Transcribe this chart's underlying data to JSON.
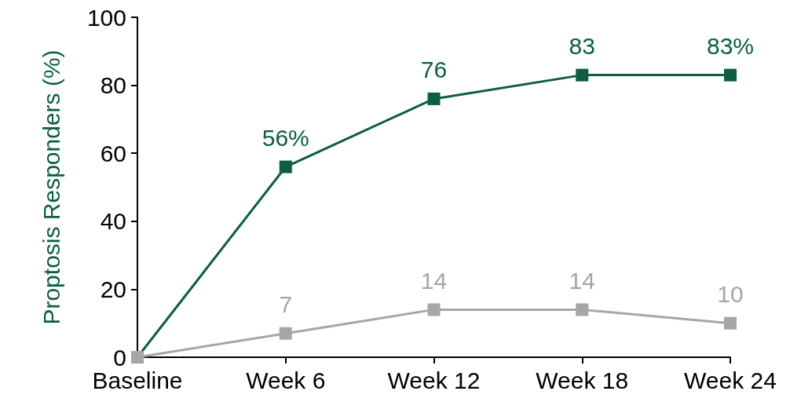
{
  "chart_data": {
    "type": "line",
    "ylabel": "Proptosis Responders (%)",
    "categories": [
      "Baseline",
      "Week 6",
      "Week 12",
      "Week 18",
      "Week 24"
    ],
    "series": [
      {
        "color": "#0b5e3f",
        "values": [
          0,
          56,
          76,
          83,
          83
        ],
        "value_labels": [
          null,
          "56%",
          "76",
          "83",
          "83%"
        ]
      },
      {
        "color": "#a6a6a6",
        "values": [
          0,
          7,
          14,
          14,
          10
        ],
        "value_labels": [
          null,
          "7",
          "14",
          "14",
          "10"
        ]
      }
    ],
    "ylim": [
      0,
      100
    ],
    "yticks": [
      0,
      20,
      40,
      60,
      80,
      100
    ],
    "grid": false,
    "marker": "square",
    "line_style": "solid"
  }
}
